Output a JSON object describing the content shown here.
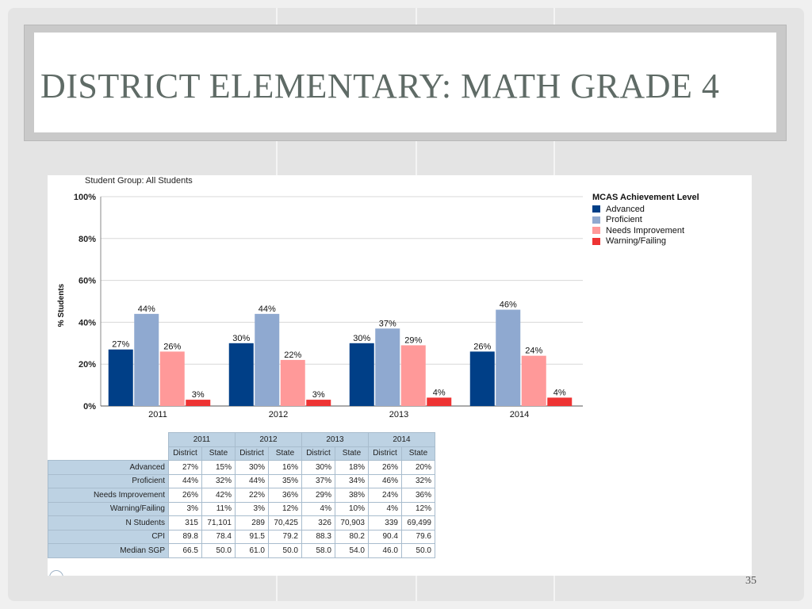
{
  "slide": {
    "title": "DISTRICT ELEMENTARY:  MATH GRADE 4",
    "page_number": "35"
  },
  "chart_data": {
    "type": "bar",
    "subtitle": "Student Group: All Students",
    "ylabel": "% Students",
    "xlabel": "",
    "ylim": [
      0,
      100
    ],
    "yticks": [
      "0%",
      "20%",
      "40%",
      "60%",
      "80%",
      "100%"
    ],
    "categories": [
      "2011",
      "2012",
      "2013",
      "2014"
    ],
    "legend_title": "MCAS Achievement Level",
    "legend_position": "right",
    "grid": true,
    "series": [
      {
        "name": "Advanced",
        "color": "#003f87",
        "values": [
          27,
          30,
          30,
          26
        ]
      },
      {
        "name": "Proficient",
        "color": "#8fa9d0",
        "values": [
          44,
          44,
          37,
          46
        ]
      },
      {
        "name": "Needs Improvement",
        "color": "#ff9999",
        "values": [
          26,
          22,
          29,
          24
        ]
      },
      {
        "name": "Warning/Failing",
        "color": "#ee3333",
        "values": [
          3,
          3,
          4,
          4
        ]
      }
    ]
  },
  "table": {
    "years": [
      "2011",
      "2012",
      "2013",
      "2014"
    ],
    "subheaders": [
      "District",
      "State"
    ],
    "rows": [
      {
        "label": "Advanced",
        "values": [
          "27%",
          "15%",
          "30%",
          "16%",
          "30%",
          "18%",
          "26%",
          "20%"
        ]
      },
      {
        "label": "Proficient",
        "values": [
          "44%",
          "32%",
          "44%",
          "35%",
          "37%",
          "34%",
          "46%",
          "32%"
        ]
      },
      {
        "label": "Needs Improvement",
        "values": [
          "26%",
          "42%",
          "22%",
          "36%",
          "29%",
          "38%",
          "24%",
          "36%"
        ]
      },
      {
        "label": "Warning/Failing",
        "values": [
          "3%",
          "11%",
          "3%",
          "12%",
          "4%",
          "10%",
          "4%",
          "12%"
        ]
      },
      {
        "label": "N Students",
        "values": [
          "315",
          "71,101",
          "289",
          "70,425",
          "326",
          "70,903",
          "339",
          "69,499"
        ]
      },
      {
        "label": "CPI",
        "values": [
          "89.8",
          "78.4",
          "91.5",
          "79.2",
          "88.3",
          "80.2",
          "90.4",
          "79.6"
        ]
      },
      {
        "label": "Median SGP",
        "values": [
          "66.5",
          "50.0",
          "61.0",
          "50.0",
          "58.0",
          "54.0",
          "46.0",
          "50.0"
        ]
      }
    ]
  }
}
